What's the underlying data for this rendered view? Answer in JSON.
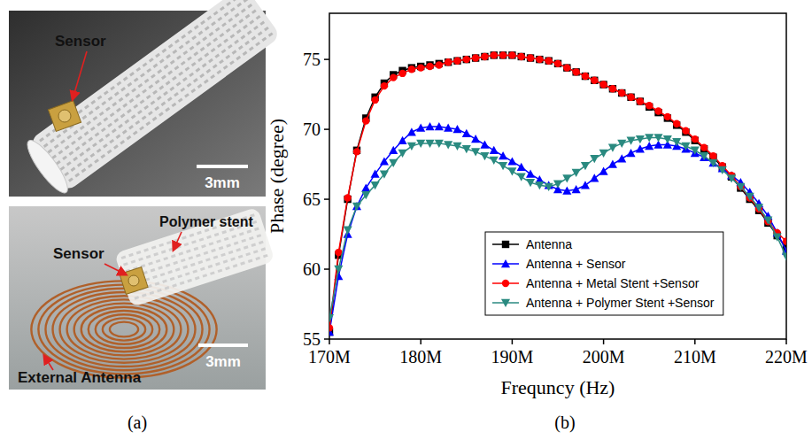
{
  "panel_labels": [
    "(a)",
    "(b)"
  ],
  "photos": [
    {
      "labels": [
        "Sensor"
      ],
      "scale_bar": "3mm"
    },
    {
      "labels": [
        "Sensor",
        "Polymer stent",
        "External Antenna"
      ],
      "scale_bar": "3mm"
    }
  ],
  "chart_data": {
    "type": "line",
    "x_label": "Frequncy (Hz)",
    "y_label": "Phase (degree)",
    "xlim": [
      170000000,
      220000000
    ],
    "ylim": [
      55,
      78.3
    ],
    "xticks": [
      {
        "value": 170000000,
        "label": "170M"
      },
      {
        "value": 180000000,
        "label": "180M"
      },
      {
        "value": 190000000,
        "label": "190M"
      },
      {
        "value": 200000000,
        "label": "200M"
      },
      {
        "value": 210000000,
        "label": "210M"
      },
      {
        "value": 220000000,
        "label": "220M"
      }
    ],
    "yticks": [
      55,
      60,
      65,
      70,
      75
    ],
    "grid": false,
    "legend": "bottom",
    "x": [
      170000000,
      171000000,
      172000000,
      173000000,
      174000000,
      175000000,
      176000000,
      177000000,
      178000000,
      179000000,
      180000000,
      181000000,
      182000000,
      183000000,
      184000000,
      185000000,
      186000000,
      187000000,
      188000000,
      189000000,
      190000000,
      191000000,
      192000000,
      193000000,
      194000000,
      195000000,
      196000000,
      197000000,
      198000000,
      199000000,
      200000000,
      201000000,
      202000000,
      203000000,
      204000000,
      205000000,
      206000000,
      207000000,
      208000000,
      209000000,
      210000000,
      211000000,
      212000000,
      213000000,
      214000000,
      215000000,
      216000000,
      217000000,
      218000000,
      219000000,
      220000000
    ],
    "series": [
      {
        "name": "Antenna",
        "color": "#000000",
        "marker": "square",
        "values": [
          55.5,
          61,
          65,
          68.5,
          70.8,
          72.3,
          73.3,
          73.9,
          74.2,
          74.4,
          74.5,
          74.6,
          74.7,
          74.8,
          74.9,
          75.0,
          75.1,
          75.2,
          75.3,
          75.3,
          75.3,
          75.2,
          75.1,
          75.0,
          74.9,
          74.7,
          74.4,
          74.1,
          73.8,
          73.5,
          73.2,
          72.9,
          72.6,
          72.3,
          72.0,
          71.6,
          71.2,
          70.8,
          70.3,
          69.8,
          69.2,
          68.6,
          68.0,
          67.3,
          66.6,
          65.8,
          65.0,
          64.2,
          63.3,
          62.4,
          61.5
        ]
      },
      {
        "name": "Antenna + Sensor",
        "color": "#0000ff",
        "marker": "triangle",
        "values": [
          55.5,
          59.5,
          62.5,
          64.5,
          65.8,
          66.8,
          67.7,
          68.5,
          69.2,
          69.8,
          70.1,
          70.2,
          70.2,
          70.1,
          70.0,
          69.7,
          69.3,
          68.9,
          68.5,
          68.1,
          67.7,
          67.3,
          66.8,
          66.4,
          66.0,
          65.7,
          65.6,
          65.7,
          66.0,
          66.5,
          67.0,
          67.5,
          67.9,
          68.3,
          68.6,
          68.8,
          68.9,
          68.9,
          68.8,
          68.6,
          68.3,
          68.0,
          67.6,
          67.2,
          66.7,
          66.2,
          65.5,
          64.7,
          63.8,
          62.6,
          61.3
        ]
      },
      {
        "name": "Antenna + Metal Stent +Sensor",
        "color": "#ff0000",
        "marker": "circle",
        "values": [
          55.8,
          61.2,
          65.1,
          68.4,
          70.6,
          72.1,
          73.1,
          73.7,
          74.0,
          74.3,
          74.4,
          74.5,
          74.6,
          74.8,
          74.9,
          75.0,
          75.1,
          75.2,
          75.3,
          75.3,
          75.3,
          75.2,
          75.1,
          75.0,
          74.9,
          74.7,
          74.4,
          74.1,
          73.8,
          73.5,
          73.2,
          72.9,
          72.6,
          72.3,
          72.0,
          71.7,
          71.3,
          70.9,
          70.4,
          69.9,
          69.3,
          68.7,
          68.1,
          67.4,
          66.7,
          65.9,
          65.1,
          64.3,
          63.4,
          62.6,
          62.0
        ]
      },
      {
        "name": "Antenna + Polymer Stent +Sensor",
        "color": "#2a8a80",
        "marker": "triangle-down",
        "values": [
          56.5,
          60,
          62.8,
          64.5,
          65.3,
          66.0,
          66.8,
          67.6,
          68.3,
          68.8,
          69.0,
          69.0,
          69.0,
          68.9,
          68.8,
          68.6,
          68.4,
          68.1,
          67.8,
          67.4,
          67.0,
          66.6,
          66.2,
          66.0,
          65.9,
          66.1,
          66.5,
          66.9,
          67.4,
          67.9,
          68.3,
          68.7,
          69.0,
          69.2,
          69.3,
          69.4,
          69.4,
          69.3,
          69.1,
          68.8,
          68.5,
          68.1,
          67.6,
          67.1,
          66.5,
          65.9,
          65.2,
          64.4,
          63.5,
          62.3,
          60.9
        ]
      }
    ]
  }
}
